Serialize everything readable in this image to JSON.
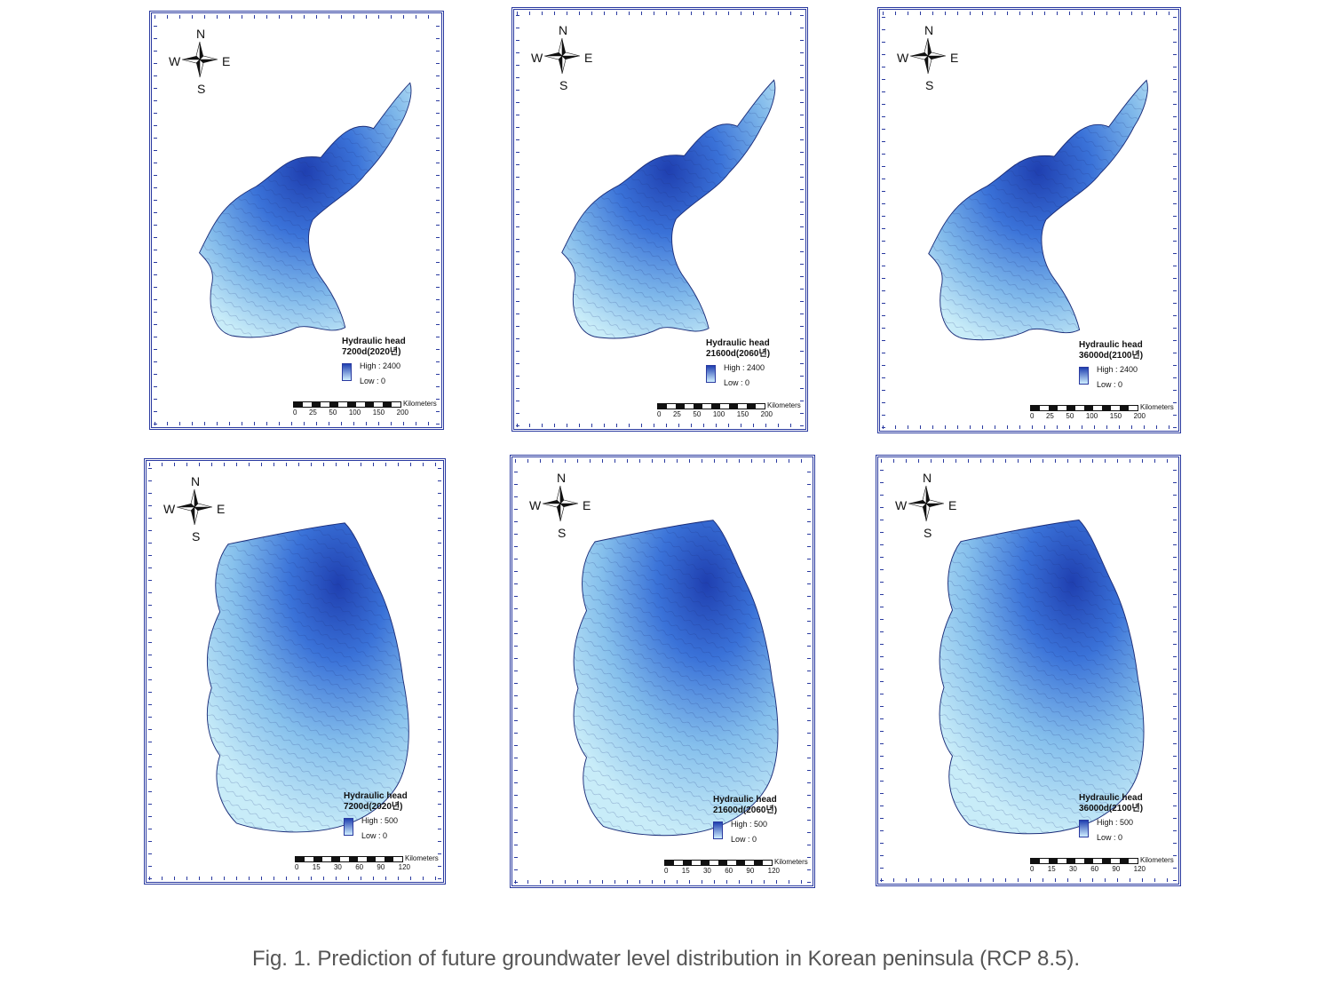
{
  "figure": {
    "caption": "Fig. 1. Prediction of future groundwater level distribution in Korean peninsula (RCP 8.5)."
  },
  "compass": {
    "n": "N",
    "s": "S",
    "w": "W",
    "e": "E"
  },
  "colors": {
    "frame": "#2a3aa0",
    "high": "#1f3fb0",
    "low": "#cfefff"
  },
  "panels": [
    {
      "id": "north-2020",
      "region": "north",
      "legend_title": "Hydraulic head",
      "legend_period": "7200d(2020년)",
      "high_label": "High :",
      "high_value": "2400",
      "low_label": "Low : 0",
      "scale_unit": "Kilometers",
      "scale_ticks": [
        "0",
        "25",
        "50",
        "100",
        "150",
        "200"
      ]
    },
    {
      "id": "north-2060",
      "region": "north",
      "legend_title": "Hydraulic head",
      "legend_period": "21600d(2060년)",
      "high_label": "High :",
      "high_value": "2400",
      "low_label": "Low : 0",
      "scale_unit": "Kilometers",
      "scale_ticks": [
        "0",
        "25",
        "50",
        "100",
        "150",
        "200"
      ]
    },
    {
      "id": "north-2100",
      "region": "north",
      "legend_title": "Hydraulic head",
      "legend_period": "36000d(2100년)",
      "high_label": "High :",
      "high_value": "2400",
      "low_label": "Low : 0",
      "scale_unit": "Kilometers",
      "scale_ticks": [
        "0",
        "25",
        "50",
        "100",
        "150",
        "200"
      ]
    },
    {
      "id": "south-2020",
      "region": "south",
      "legend_title": "Hydraulic head",
      "legend_period": "7200d(2020년)",
      "high_label": "High :",
      "high_value": "500",
      "low_label": "Low : 0",
      "scale_unit": "Kilometers",
      "scale_ticks": [
        "0",
        "15",
        "30",
        "60",
        "90",
        "120"
      ]
    },
    {
      "id": "south-2060",
      "region": "south",
      "legend_title": "Hydraulic head",
      "legend_period": "21600d(2060년)",
      "high_label": "High :",
      "high_value": "500",
      "low_label": "Low : 0",
      "scale_unit": "Kilometers",
      "scale_ticks": [
        "0",
        "15",
        "30",
        "60",
        "90",
        "120"
      ]
    },
    {
      "id": "south-2100",
      "region": "south",
      "legend_title": "Hydraulic head",
      "legend_period": "36000d(2100년)",
      "high_label": "High :",
      "high_value": "500",
      "low_label": "Low : 0",
      "scale_unit": "Kilometers",
      "scale_ticks": [
        "0",
        "15",
        "30",
        "60",
        "90",
        "120"
      ]
    }
  ]
}
